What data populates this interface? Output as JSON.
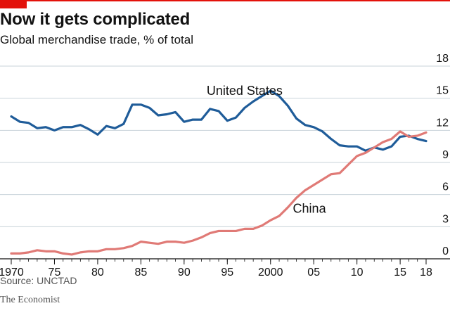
{
  "header": {
    "title": "Now it gets complicated",
    "subtitle": "Global merchandise trade, % of total"
  },
  "footer": {
    "source": "Source: UNCTAD",
    "brand": "The Economist"
  },
  "colors": {
    "accent": "#e3120b",
    "us": "#1f5c99",
    "china": "#e07a76",
    "grid": "#c8d3da",
    "axis": "#121212"
  },
  "chart_data": {
    "type": "line",
    "title": "Now it gets complicated",
    "subtitle": "Global merchandise trade, % of total",
    "ylim": [
      0,
      18
    ],
    "yticks": [
      0,
      3,
      6,
      9,
      12,
      15,
      18
    ],
    "xlim": [
      1970,
      2018
    ],
    "xticks": [
      {
        "value": 1970,
        "label": "1970"
      },
      {
        "value": 1975,
        "label": "75"
      },
      {
        "value": 1980,
        "label": "80"
      },
      {
        "value": 1985,
        "label": "85"
      },
      {
        "value": 1990,
        "label": "90"
      },
      {
        "value": 1995,
        "label": "95"
      },
      {
        "value": 2000,
        "label": "2000"
      },
      {
        "value": 2005,
        "label": "05"
      },
      {
        "value": 2010,
        "label": "10"
      },
      {
        "value": 2015,
        "label": "15"
      },
      {
        "value": 2018,
        "label": "18"
      }
    ],
    "grid": true,
    "x": [
      1970,
      1971,
      1972,
      1973,
      1974,
      1975,
      1976,
      1977,
      1978,
      1979,
      1980,
      1981,
      1982,
      1983,
      1984,
      1985,
      1986,
      1987,
      1988,
      1989,
      1990,
      1991,
      1992,
      1993,
      1994,
      1995,
      1996,
      1997,
      1998,
      1999,
      2000,
      2001,
      2002,
      2003,
      2004,
      2005,
      2006,
      2007,
      2008,
      2009,
      2010,
      2011,
      2012,
      2013,
      2014,
      2015,
      2016,
      2017,
      2018
    ],
    "series": [
      {
        "name": "United States",
        "color": "#1f5c99",
        "values": [
          13.3,
          12.8,
          12.7,
          12.2,
          12.3,
          12.0,
          12.3,
          12.3,
          12.5,
          12.1,
          11.6,
          12.4,
          12.2,
          12.6,
          14.4,
          14.4,
          14.1,
          13.4,
          13.5,
          13.7,
          12.8,
          13.0,
          13.0,
          14.0,
          13.8,
          12.9,
          13.2,
          14.1,
          14.7,
          15.2,
          15.7,
          15.2,
          14.3,
          13.1,
          12.5,
          12.3,
          11.9,
          11.2,
          10.6,
          10.5,
          10.5,
          10.1,
          10.4,
          10.2,
          10.5,
          11.4,
          11.5,
          11.2,
          11.0
        ],
        "label_year": 1997,
        "label_value": 15.3
      },
      {
        "name": "China",
        "color": "#e07a76",
        "values": [
          0.5,
          0.5,
          0.6,
          0.8,
          0.7,
          0.7,
          0.5,
          0.4,
          0.6,
          0.7,
          0.7,
          0.9,
          0.9,
          1.0,
          1.2,
          1.6,
          1.5,
          1.4,
          1.6,
          1.6,
          1.5,
          1.7,
          2.0,
          2.4,
          2.6,
          2.6,
          2.6,
          2.8,
          2.8,
          3.1,
          3.6,
          4.0,
          4.8,
          5.7,
          6.4,
          6.9,
          7.4,
          7.9,
          8.0,
          8.8,
          9.6,
          9.9,
          10.4,
          10.9,
          11.2,
          11.9,
          11.4,
          11.5,
          11.8
        ],
        "label_year": 2004.5,
        "label_value": 4.3
      }
    ]
  }
}
